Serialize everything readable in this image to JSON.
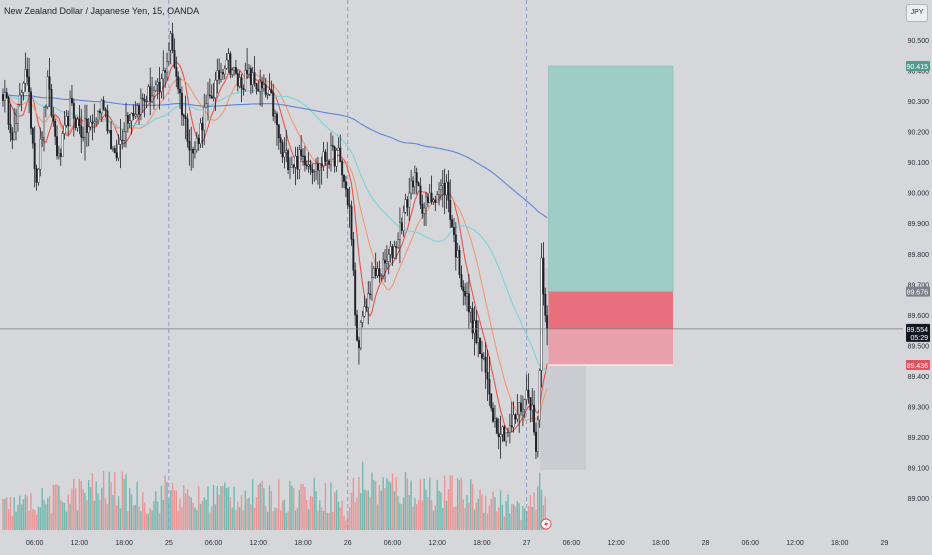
{
  "header": {
    "title": "New Zealand Dollar / Japanese Yen, 15, OANDA",
    "currency": "JPY"
  },
  "colors": {
    "background": "#d6d7db",
    "candle": "#1c1f26",
    "volume_up": "#5fb3a6",
    "volume_down": "#ec8a88",
    "ma_fast": "#e9534b",
    "ma_mid": "#ee9a74",
    "ma_slow": "#7ed3d6",
    "ma_long": "#5d86d6",
    "target_zone": "#9ecdc6",
    "stop_zone": "#e8707c",
    "stop_zone_light": "#e8a1ab",
    "projection": "#c6c8cd",
    "price_line": "#7a7d85",
    "session_line": "#7f8fc4"
  },
  "chart_data": {
    "type": "candlestick",
    "symbol": "NZDJPY",
    "timeframe": "15",
    "source": "OANDA",
    "y_axis": {
      "range": [
        88.86,
        90.57
      ],
      "ticks": [
        "90.500",
        "90.400",
        "90.300",
        "90.200",
        "90.100",
        "90.000",
        "89.900",
        "89.800",
        "89.700",
        "89.600",
        "89.500",
        "89.400",
        "89.300",
        "89.200",
        "89.100",
        "89.000"
      ]
    },
    "x_axis": {
      "ticks": [
        {
          "label": "06:00",
          "bar": 17
        },
        {
          "label": "12:00",
          "bar": 41
        },
        {
          "label": "18:00",
          "bar": 65
        },
        {
          "label": "25",
          "bar": 89,
          "session_break": true
        },
        {
          "label": "06:00",
          "bar": 113
        },
        {
          "label": "12:00",
          "bar": 137
        },
        {
          "label": "18:00",
          "bar": 161
        },
        {
          "label": "26",
          "bar": 185,
          "session_break": true
        },
        {
          "label": "06:00",
          "bar": 209
        },
        {
          "label": "12:00",
          "bar": 233
        },
        {
          "label": "18:00",
          "bar": 257
        },
        {
          "label": "27",
          "bar": 281,
          "session_break": true
        },
        {
          "label": "06:00",
          "bar": 305
        },
        {
          "label": "12:00",
          "bar": 329
        },
        {
          "label": "18:00",
          "bar": 353
        },
        {
          "label": "28",
          "bar": 377
        },
        {
          "label": "06:00",
          "bar": 401
        },
        {
          "label": "12:00",
          "bar": 425
        },
        {
          "label": "18:00",
          "bar": 449
        },
        {
          "label": "29",
          "bar": 473
        }
      ]
    },
    "total_bars": 293,
    "price_anchors": [
      [
        0,
        90.33
      ],
      [
        6,
        90.18
      ],
      [
        12,
        90.42
      ],
      [
        18,
        90.05
      ],
      [
        24,
        90.35
      ],
      [
        30,
        90.1
      ],
      [
        36,
        90.28
      ],
      [
        42,
        90.2
      ],
      [
        48,
        90.22
      ],
      [
        54,
        90.3
      ],
      [
        60,
        90.1
      ],
      [
        66,
        90.25
      ],
      [
        72,
        90.28
      ],
      [
        78,
        90.32
      ],
      [
        84,
        90.33
      ],
      [
        90,
        90.5
      ],
      [
        96,
        90.28
      ],
      [
        102,
        90.12
      ],
      [
        108,
        90.26
      ],
      [
        114,
        90.35
      ],
      [
        120,
        90.45
      ],
      [
        126,
        90.36
      ],
      [
        132,
        90.38
      ],
      [
        138,
        90.34
      ],
      [
        144,
        90.3
      ],
      [
        150,
        90.12
      ],
      [
        156,
        90.1
      ],
      [
        162,
        90.12
      ],
      [
        168,
        90.08
      ],
      [
        174,
        90.12
      ],
      [
        180,
        90.12
      ],
      [
        186,
        89.95
      ],
      [
        190,
        89.5
      ],
      [
        194,
        89.6
      ],
      [
        198,
        89.72
      ],
      [
        204,
        89.75
      ],
      [
        210,
        89.82
      ],
      [
        216,
        89.95
      ],
      [
        220,
        90.05
      ],
      [
        226,
        89.95
      ],
      [
        232,
        90.0
      ],
      [
        238,
        90.02
      ],
      [
        242,
        89.85
      ],
      [
        246,
        89.72
      ],
      [
        250,
        89.62
      ],
      [
        256,
        89.48
      ],
      [
        260,
        89.38
      ],
      [
        264,
        89.25
      ],
      [
        268,
        89.22
      ],
      [
        272,
        89.22
      ],
      [
        276,
        89.28
      ],
      [
        280,
        89.32
      ],
      [
        282,
        89.36
      ],
      [
        284,
        89.28
      ],
      [
        286,
        89.15
      ],
      [
        288,
        89.42
      ],
      [
        289,
        89.78
      ],
      [
        291,
        89.62
      ],
      [
        292,
        89.554
      ]
    ],
    "volume_anchors": [
      [
        0,
        25
      ],
      [
        20,
        30
      ],
      [
        40,
        40
      ],
      [
        60,
        45
      ],
      [
        80,
        30
      ],
      [
        90,
        45
      ],
      [
        100,
        30
      ],
      [
        120,
        40
      ],
      [
        140,
        35
      ],
      [
        160,
        40
      ],
      [
        180,
        35
      ],
      [
        184,
        12
      ],
      [
        190,
        55
      ],
      [
        200,
        45
      ],
      [
        220,
        45
      ],
      [
        240,
        40
      ],
      [
        260,
        35
      ],
      [
        280,
        20
      ],
      [
        286,
        30
      ],
      [
        290,
        55
      ],
      [
        292,
        15
      ]
    ],
    "moving_averages": [
      {
        "name": "ma_fast",
        "color": "#e9534b",
        "period": 9
      },
      {
        "name": "ma_mid",
        "color": "#ee9a74",
        "period": 20
      },
      {
        "name": "ma_slow",
        "color": "#7ed3d6",
        "period": 50
      },
      {
        "name": "ma_long",
        "color": "#5d86d6",
        "period": 200
      }
    ],
    "position": {
      "type": "long",
      "entry": 89.676,
      "target": 90.415,
      "stop": 89.436,
      "start_bar": 293,
      "end_bar": 377
    },
    "current_price": 89.554,
    "countdown": "05:29",
    "labels": {
      "target": "90.415",
      "entry": "89.676",
      "current": "89.554",
      "stop": "89.436"
    }
  }
}
